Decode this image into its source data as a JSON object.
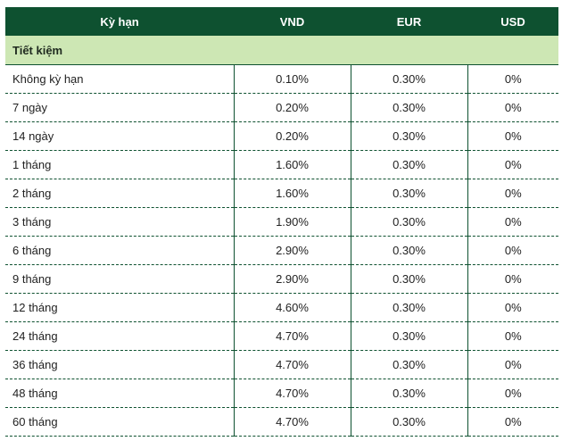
{
  "table": {
    "headers": [
      "Kỳ hạn",
      "VND",
      "EUR",
      "USD"
    ],
    "section_label": "Tiết kiệm",
    "rows": [
      {
        "term": "Không kỳ hạn",
        "vnd": "0.10%",
        "eur": "0.30%",
        "usd": "0%"
      },
      {
        "term": "7 ngày",
        "vnd": "0.20%",
        "eur": "0.30%",
        "usd": "0%"
      },
      {
        "term": "14 ngày",
        "vnd": "0.20%",
        "eur": "0.30%",
        "usd": "0%"
      },
      {
        "term": "1 tháng",
        "vnd": "1.60%",
        "eur": "0.30%",
        "usd": "0%"
      },
      {
        "term": "2 tháng",
        "vnd": "1.60%",
        "eur": "0.30%",
        "usd": "0%"
      },
      {
        "term": "3 tháng",
        "vnd": "1.90%",
        "eur": "0.30%",
        "usd": "0%"
      },
      {
        "term": "6 tháng",
        "vnd": "2.90%",
        "eur": "0.30%",
        "usd": "0%"
      },
      {
        "term": "9 tháng",
        "vnd": "2.90%",
        "eur": "0.30%",
        "usd": "0%"
      },
      {
        "term": "12 tháng",
        "vnd": "4.60%",
        "eur": "0.30%",
        "usd": "0%"
      },
      {
        "term": "24 tháng",
        "vnd": "4.70%",
        "eur": "0.30%",
        "usd": "0%"
      },
      {
        "term": "36 tháng",
        "vnd": "4.70%",
        "eur": "0.30%",
        "usd": "0%"
      },
      {
        "term": "48 tháng",
        "vnd": "4.70%",
        "eur": "0.30%",
        "usd": "0%"
      },
      {
        "term": "60 tháng",
        "vnd": "4.70%",
        "eur": "0.30%",
        "usd": "0%"
      }
    ]
  },
  "colors": {
    "header_bg": "#0e5130",
    "header_text": "#ffffff",
    "section_bg": "#cde7b4",
    "border": "#0e5130"
  }
}
